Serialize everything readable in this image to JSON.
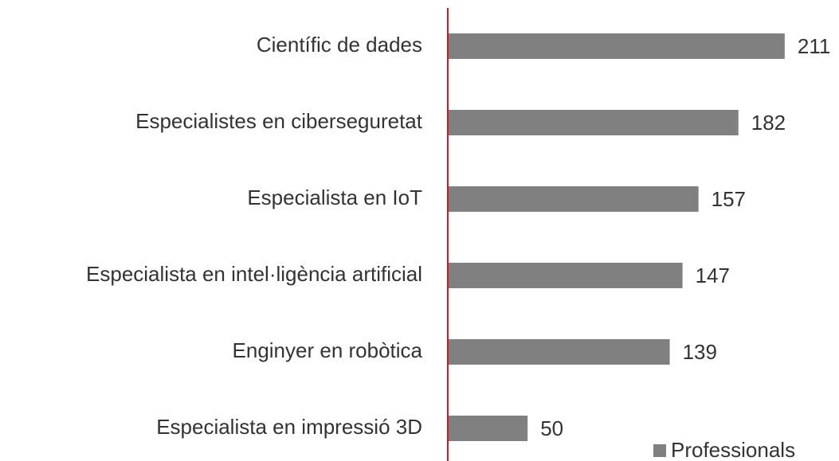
{
  "chart_data": {
    "type": "bar",
    "orientation": "horizontal",
    "categories": [
      "Científic de dades",
      "Especialistes en ciberseguretat",
      "Especialista en IoT",
      "Especialista en intel·ligència artificial",
      "Enginyer en robòtica",
      "Especialista en impressió 3D"
    ],
    "series": [
      {
        "name": "Professionals",
        "color": "#808080",
        "values": [
          211,
          182,
          157,
          147,
          139,
          50
        ]
      }
    ],
    "xlim": [
      0,
      245
    ],
    "axis_color": "#d9141c",
    "legend": "bottom-right"
  }
}
